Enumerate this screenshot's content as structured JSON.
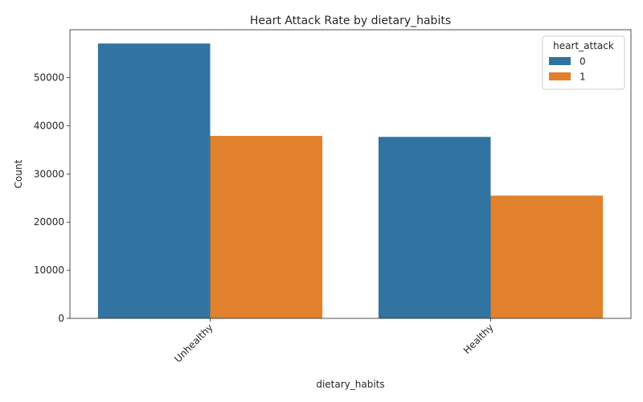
{
  "chart_data": {
    "type": "bar",
    "title": "Heart Attack Rate by dietary_habits",
    "xlabel": "dietary_habits",
    "ylabel": "Count",
    "categories": [
      "Unhealthy",
      "Healthy"
    ],
    "series": [
      {
        "name": "0",
        "values": [
          57100,
          37700
        ],
        "color": "#3274a1"
      },
      {
        "name": "1",
        "values": [
          37900,
          25500
        ],
        "color": "#e1812c"
      }
    ],
    "ylim": [
      0,
      59955
    ],
    "yticks": [
      0,
      10000,
      20000,
      30000,
      40000,
      50000
    ],
    "ytick_labels": [
      "0",
      "10000",
      "20000",
      "30000",
      "40000",
      "50000"
    ],
    "legend": {
      "title": "heart_attack",
      "placement": "top-right"
    },
    "grid": false
  }
}
